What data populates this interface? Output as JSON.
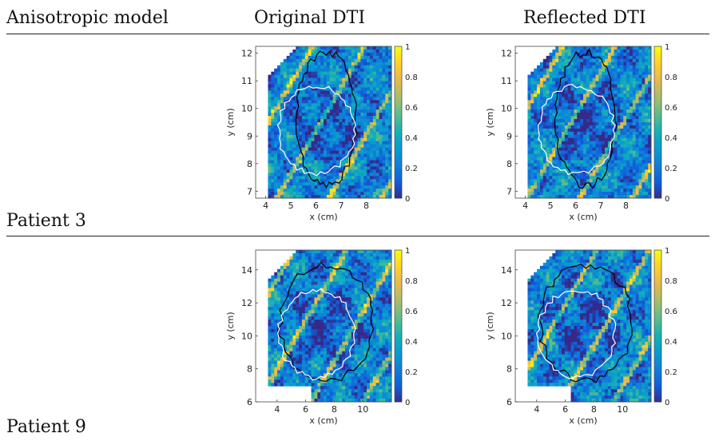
{
  "header": {
    "col1": "Anisotropic model",
    "col2": "Original DTI",
    "col3": "Reflected DTI"
  },
  "rows": [
    {
      "label": "Patient 3"
    },
    {
      "label": "Patient 9"
    }
  ],
  "chart_data": [
    {
      "type": "heatmap",
      "row": "Patient 3",
      "column": "Original DTI",
      "xlabel": "x (cm)",
      "ylabel": "y (cm)",
      "xlim": [
        3.6,
        9.0
      ],
      "ylim": [
        6.75,
        12.25
      ],
      "xticks": [
        4,
        5,
        6,
        7,
        8
      ],
      "yticks": [
        7,
        8,
        9,
        10,
        11,
        12
      ],
      "colorbar": {
        "range": [
          0,
          1
        ],
        "ticks": [
          "0",
          "0.2",
          "0.4",
          "0.6",
          "0.8",
          "1"
        ]
      },
      "contours": [
        "black",
        "white"
      ]
    },
    {
      "type": "heatmap",
      "row": "Patient 3",
      "column": "Reflected DTI",
      "xlabel": "x (cm)",
      "ylabel": "y (cm)",
      "xlim": [
        3.6,
        9.0
      ],
      "ylim": [
        6.75,
        12.25
      ],
      "xticks": [
        4,
        5,
        6,
        7,
        8
      ],
      "yticks": [
        7,
        8,
        9,
        10,
        11,
        12
      ],
      "colorbar": {
        "range": [
          0,
          1
        ],
        "ticks": [
          "0",
          "0.2",
          "0.4",
          "0.6",
          "0.8",
          "1"
        ]
      },
      "contours": [
        "black",
        "white"
      ]
    },
    {
      "type": "heatmap",
      "row": "Patient 9",
      "column": "Original DTI",
      "xlabel": "x (cm)",
      "ylabel": "y (cm)",
      "xlim": [
        2.5,
        12.0
      ],
      "ylim": [
        6,
        15.2
      ],
      "xticks": [
        4,
        6,
        8,
        10
      ],
      "yticks": [
        6,
        8,
        10,
        12,
        14
      ],
      "colorbar": {
        "range": [
          0,
          1
        ],
        "ticks": [
          "0",
          "0.2",
          "0.4",
          "0.6",
          "0.8",
          "1"
        ]
      },
      "contours": [
        "black",
        "white"
      ]
    },
    {
      "type": "heatmap",
      "row": "Patient 9",
      "column": "Reflected DTI",
      "xlabel": "x (cm)",
      "ylabel": "y (cm)",
      "xlim": [
        2.5,
        12.0
      ],
      "ylim": [
        6,
        15.2
      ],
      "xticks": [
        4,
        6,
        8,
        10
      ],
      "yticks": [
        6,
        8,
        10,
        12,
        14
      ],
      "colorbar": {
        "range": [
          0,
          1
        ],
        "ticks": [
          "0",
          "0.2",
          "0.4",
          "0.6",
          "0.8",
          "1"
        ]
      },
      "contours": [
        "black",
        "white"
      ]
    }
  ]
}
